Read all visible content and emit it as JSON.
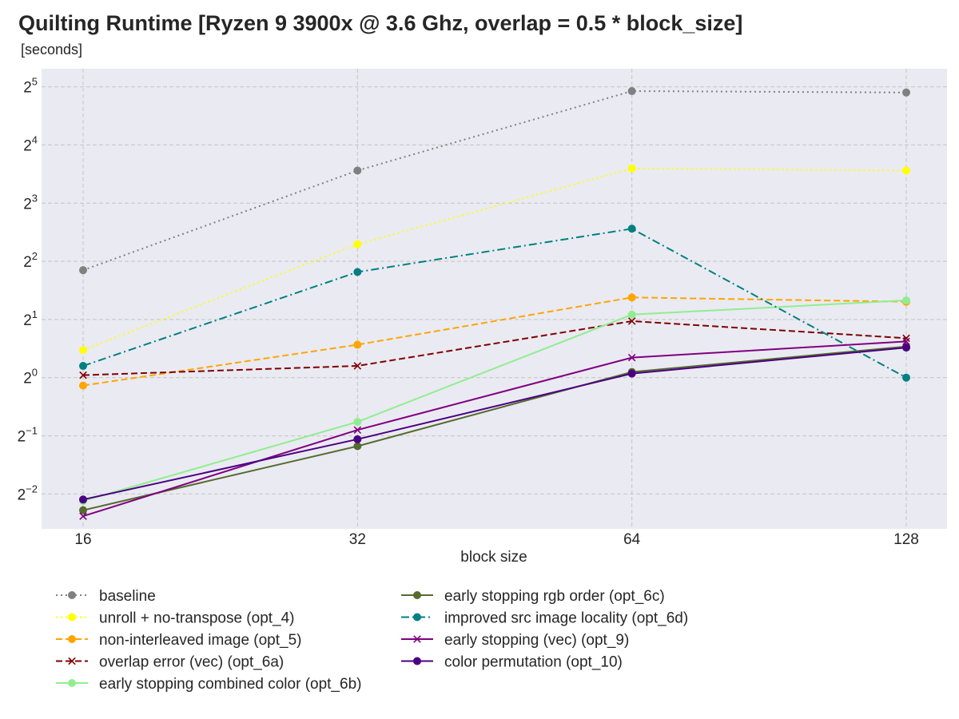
{
  "chart_data": {
    "type": "line",
    "title": "Quilting Runtime [Ryzen 9 3900x @ 3.6 Ghz, overlap = 0.5 * block_size]",
    "subtitle": "[seconds]",
    "xlabel": "block size",
    "ylabel": "",
    "x_scale": "log2",
    "y_scale": "log2",
    "x": [
      16,
      32,
      64,
      128
    ],
    "x_tick_labels": [
      "16",
      "32",
      "64",
      "128"
    ],
    "ylim": [
      0.165,
      39.7
    ],
    "y_ticks": [
      {
        "value": 0.25,
        "base": "2",
        "exp": "−2"
      },
      {
        "value": 0.5,
        "base": "2",
        "exp": "−1"
      },
      {
        "value": 1,
        "base": "2",
        "exp": "0"
      },
      {
        "value": 2,
        "base": "2",
        "exp": "1"
      },
      {
        "value": 4,
        "base": "2",
        "exp": "2"
      },
      {
        "value": 8,
        "base": "2",
        "exp": "3"
      },
      {
        "value": 16,
        "base": "2",
        "exp": "4"
      },
      {
        "value": 32,
        "base": "2",
        "exp": "5"
      }
    ],
    "grid": true,
    "legend_position": "bottom",
    "series": [
      {
        "name": "baseline",
        "color": "#808080",
        "dash": "dotted",
        "marker": "circle",
        "values": [
          3.6,
          11.8,
          30.4,
          29.9
        ]
      },
      {
        "name": "unroll + no-transpose (opt_4)",
        "color": "#ffff00",
        "dash": "dotted",
        "marker": "circle",
        "values": [
          1.39,
          4.9,
          12.1,
          11.8
        ]
      },
      {
        "name": "non-interleaved image (opt_5)",
        "color": "#ffa500",
        "dash": "dashed",
        "marker": "circle",
        "values": [
          0.91,
          1.48,
          2.6,
          2.47
        ]
      },
      {
        "name": "overlap error (vec) (opt_6a)",
        "color": "#800000",
        "dash": "dashed",
        "marker": "x",
        "values": [
          1.03,
          1.15,
          1.96,
          1.6
        ]
      },
      {
        "name": "early stopping combined color (opt_6b)",
        "color": "#90ee90",
        "dash": "solid",
        "marker": "circle",
        "values": [
          0.23,
          0.59,
          2.12,
          2.51
        ]
      },
      {
        "name": "early stopping rgb order (opt_6c)",
        "color": "#556b2f",
        "dash": "solid",
        "marker": "circle",
        "values": [
          0.206,
          0.442,
          1.07,
          1.45
        ]
      },
      {
        "name": "improved src image locality (opt_6d)",
        "color": "#008080",
        "dash": "dashdot",
        "marker": "circle",
        "values": [
          1.15,
          3.52,
          5.9,
          1.0
        ]
      },
      {
        "name": "early stopping (vec) (opt_9)",
        "color": "#800080",
        "dash": "solid",
        "marker": "x",
        "values": [
          0.192,
          0.536,
          1.27,
          1.54
        ]
      },
      {
        "name": "color permutation (opt_10)",
        "color": "#4b0082",
        "dash": "solid",
        "marker": "circle",
        "values": [
          0.234,
          0.48,
          1.05,
          1.43
        ]
      }
    ]
  }
}
